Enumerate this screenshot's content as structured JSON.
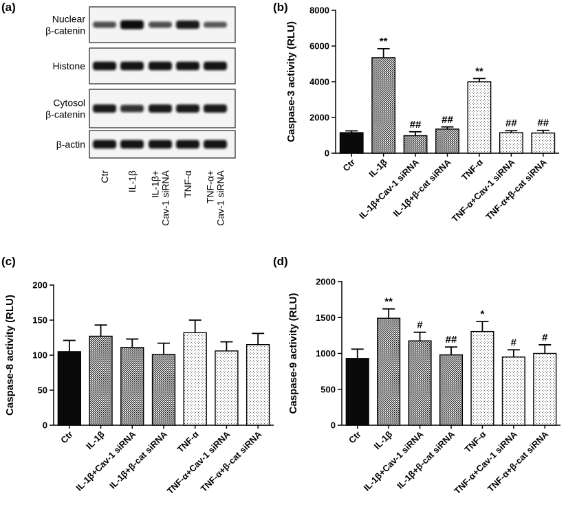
{
  "blot": {
    "label": "(a)",
    "rows": [
      {
        "label_lines": [
          "Nuclear",
          "β-catenin"
        ],
        "band_intensity": [
          0.55,
          1.0,
          0.55,
          0.9,
          0.5
        ]
      },
      {
        "label_lines": [
          "Histone"
        ],
        "band_intensity": [
          0.95,
          0.95,
          0.95,
          0.95,
          0.95
        ]
      },
      {
        "label_lines": [
          "Cytosol",
          "β-catenin"
        ],
        "band_intensity": [
          0.9,
          0.75,
          0.9,
          0.9,
          0.9
        ]
      },
      {
        "label_lines": [
          "β-actin"
        ],
        "band_intensity": [
          0.95,
          0.95,
          0.95,
          0.95,
          0.95
        ]
      }
    ],
    "lanes": [
      {
        "lines": [
          "Ctr"
        ]
      },
      {
        "lines": [
          "IL-1β"
        ]
      },
      {
        "lines": [
          "IL-1β+",
          "Cav-1 siRNA"
        ]
      },
      {
        "lines": [
          "TNF-α"
        ]
      },
      {
        "lines": [
          "TNF-α+",
          "Cav-1 siRNA"
        ]
      }
    ]
  },
  "chart_data": [
    {
      "panel": "(b)",
      "type": "bar",
      "ylabel": "Caspase-3 activity (RLU)",
      "ylim": [
        0,
        8000
      ],
      "yticks": [
        0,
        2000,
        4000,
        6000,
        8000
      ],
      "categories": [
        "Ctr",
        "IL-1β",
        "IL-1β+Cav-1 siRNA",
        "IL-1β+β-cat siRNA",
        "TNF-α",
        "TNF-α+Cav-1 siRNA",
        "TNF-α+β-cat siRNA"
      ],
      "values": [
        1150,
        5350,
        980,
        1350,
        4000,
        1150,
        1130
      ],
      "errors": [
        100,
        500,
        220,
        120,
        180,
        110,
        150
      ],
      "annotations": [
        "",
        "**",
        "##",
        "##",
        "**",
        "##",
        "##"
      ],
      "fills": [
        "black",
        "dense",
        "dense",
        "dense",
        "sparse",
        "sparse",
        "sparse"
      ]
    },
    {
      "panel": "(c)",
      "type": "bar",
      "ylabel": "Caspase-8 activity (RLU)",
      "ylim": [
        0,
        200
      ],
      "yticks": [
        0,
        50,
        100,
        150,
        200
      ],
      "categories": [
        "Ctr",
        "IL-1β",
        "IL-1β+Cav-1 siRNA",
        "IL-1β+β-cat siRNA",
        "TNF-α",
        "TNF-α+Cav-1 siRNA",
        "TNF-α+β-cat siRNA"
      ],
      "values": [
        105,
        127,
        111,
        101,
        132,
        106,
        115
      ],
      "errors": [
        16,
        16,
        12,
        16,
        18,
        13,
        16
      ],
      "annotations": [
        "",
        "",
        "",
        "",
        "",
        "",
        ""
      ],
      "fills": [
        "black",
        "dense",
        "dense",
        "dense",
        "sparse",
        "sparse",
        "sparse"
      ]
    },
    {
      "panel": "(d)",
      "type": "bar",
      "ylabel": "Caspase-9 activity (RLU)",
      "ylim": [
        0,
        2000
      ],
      "yticks": [
        0,
        500,
        1000,
        1500,
        2000
      ],
      "categories": [
        "Ctr",
        "IL-1β",
        "IL-1β+Cav-1 siRNA",
        "IL-1β+β-cat siRNA",
        "TNF-α",
        "TNF-α+Cav-1 siRNA",
        "TNF-α+β-cat siRNA"
      ],
      "values": [
        930,
        1490,
        1175,
        980,
        1305,
        950,
        1000
      ],
      "errors": [
        130,
        130,
        120,
        110,
        140,
        100,
        120
      ],
      "annotations": [
        "",
        "**",
        "#",
        "##",
        "*",
        "#",
        "#"
      ],
      "fills": [
        "black",
        "dense",
        "dense",
        "dense",
        "sparse",
        "sparse",
        "sparse"
      ]
    }
  ]
}
